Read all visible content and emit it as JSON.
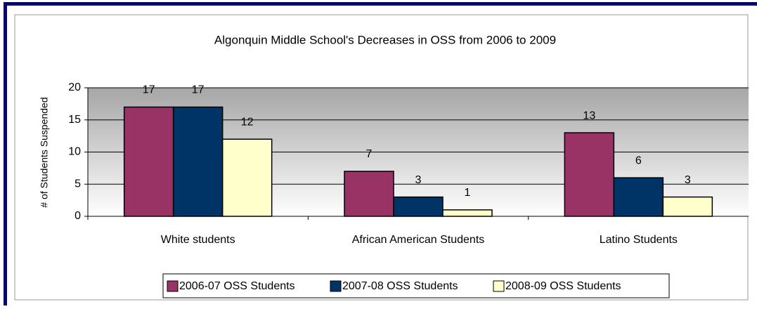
{
  "chart_data": {
    "type": "bar",
    "title": "Algonquin Middle School's Decreases in OSS from 2006 to 2009",
    "ylabel": "# of Students Suspended",
    "categories": [
      "White students",
      "African American Students",
      "Latino Students"
    ],
    "series": [
      {
        "name": "2006-07 OSS Students",
        "color": "#993366",
        "values": [
          17,
          7,
          13
        ]
      },
      {
        "name": "2007-08 OSS Students",
        "color": "#003366",
        "values": [
          17,
          3,
          6
        ]
      },
      {
        "name": "2008-09 OSS Students",
        "color": "#ffffcc",
        "values": [
          12,
          1,
          3
        ]
      }
    ],
    "ylim": [
      0,
      20
    ],
    "yticks": [
      0,
      5,
      10,
      15,
      20
    ],
    "grid": true,
    "legend": "bottom"
  }
}
